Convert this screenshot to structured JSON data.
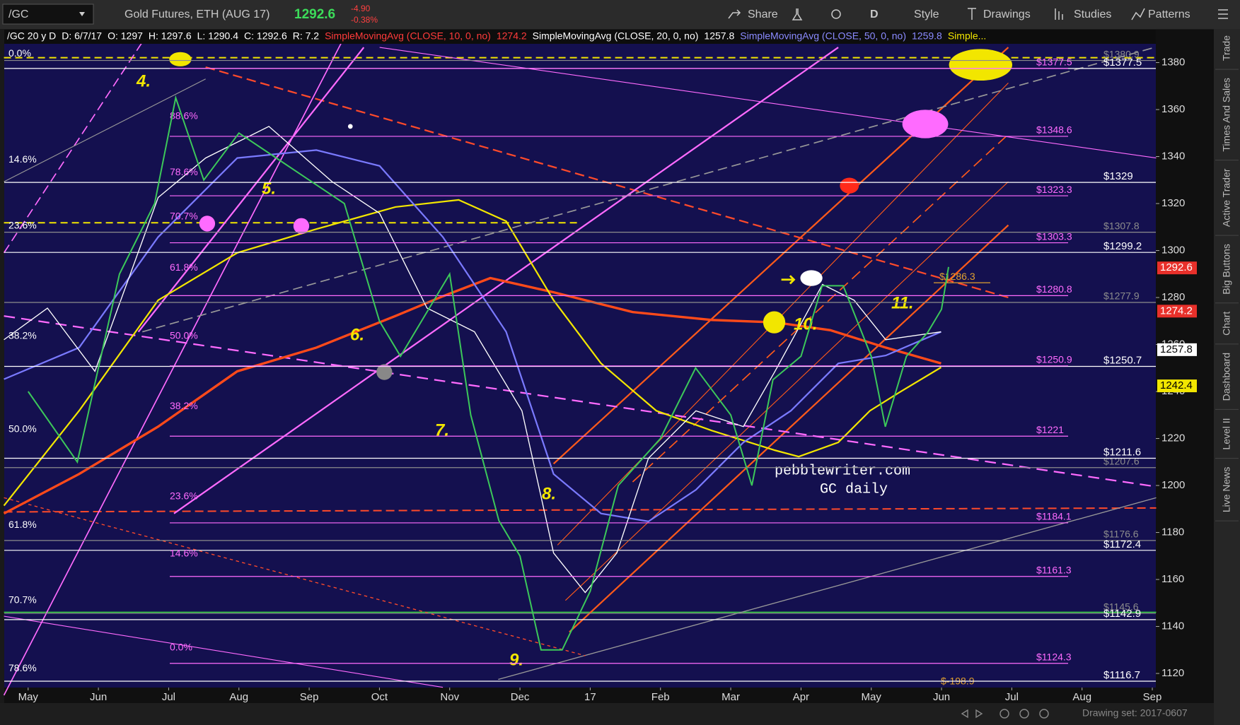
{
  "toolbar": {
    "symbol": "/GC",
    "description": "Gold Futures, ETH (AUG 17)",
    "last": "1292.6",
    "change": "-4.90",
    "change_pct": "-0.38%",
    "buttons": [
      "Share",
      "D",
      "Style",
      "Drawings",
      "Studies",
      "Patterns"
    ]
  },
  "header": {
    "items": [
      "/GC 20 y D",
      "D: 6/7/17",
      "O: 1297",
      "H: 1297.6",
      "L: 1290.4",
      "C: 1292.6",
      "R: 7.2"
    ],
    "studies": [
      {
        "name": "SimpleMovingAvg (CLOSE, 10, 0, no)",
        "value": "1274.2",
        "color": "#ff3b3b"
      },
      {
        "name": "SimpleMovingAvg (CLOSE, 20, 0, no)",
        "value": "1257.8",
        "color": "#ffffff"
      },
      {
        "name": "SimpleMovingAvg (CLOSE, 50, 0, no)",
        "value": "1259.8",
        "color": "#8a8aff"
      }
    ],
    "more": "Simple..."
  },
  "side_tabs": [
    "Trade",
    "Times And Sales",
    "Active Trader",
    "Big Buttons",
    "Chart",
    "Dashboard",
    "Level II",
    "Live News"
  ],
  "footer": {
    "drawing_set": "Drawing set: 2017-0607"
  },
  "chart_data": {
    "type": "line",
    "color": "#3cc85a",
    "x": [
      0,
      0.7,
      1.3,
      1.8,
      2.1,
      2.5,
      3.0,
      3.5,
      4.0,
      4.5,
      5.0,
      5.3,
      6.0,
      6.3,
      6.7,
      7.0,
      7.3,
      7.6,
      8.0,
      8.4,
      9.0,
      9.5,
      10.0,
      10.3,
      10.6,
      11.0,
      11.3,
      11.6,
      12.0,
      12.2,
      12.5,
      12.8,
      13.0,
      13.1
    ],
    "values": [
      1240,
      1210,
      1290,
      1320,
      1365,
      1330,
      1350,
      1340,
      1330,
      1320,
      1270,
      1255,
      1290,
      1230,
      1185,
      1170,
      1130,
      1130,
      1155,
      1200,
      1220,
      1250,
      1230,
      1200,
      1245,
      1255,
      1285,
      1285,
      1255,
      1225,
      1255,
      1265,
      1275,
      1293
    ],
    "xlim": [
      -0.34,
      16.05
    ],
    "xticks": [
      {
        "value": 0,
        "label": "May"
      },
      {
        "value": 1,
        "label": "Jun"
      },
      {
        "value": 2,
        "label": "Jul"
      },
      {
        "value": 3,
        "label": "Aug"
      },
      {
        "value": 4,
        "label": "Sep"
      },
      {
        "value": 5,
        "label": "Oct"
      },
      {
        "value": 6,
        "label": "Nov"
      },
      {
        "value": 7,
        "label": "Dec"
      },
      {
        "value": 8,
        "label": "17"
      },
      {
        "value": 9,
        "label": "Feb"
      },
      {
        "value": 10,
        "label": "Mar"
      },
      {
        "value": 11,
        "label": "Apr"
      },
      {
        "value": 12,
        "label": "May"
      },
      {
        "value": 13,
        "label": "Jun"
      },
      {
        "value": 14,
        "label": "Jul"
      },
      {
        "value": 15,
        "label": "Aug"
      },
      {
        "value": 16,
        "label": "Sep"
      }
    ],
    "ylim": [
      1114,
      1394
    ],
    "yticks": [
      1120,
      1140,
      1160,
      1180,
      1200,
      1220,
      1240,
      1260,
      1280,
      1300,
      1320,
      1340,
      1360,
      1380
    ],
    "price_tags": [
      {
        "label": "1292.6",
        "value": 1292.6,
        "color": "#e8302a"
      },
      {
        "label": "1274.2",
        "value": 1274.2,
        "color": "#e8302a"
      },
      {
        "label": "1257.8",
        "value": 1257.8,
        "color": "#ffffff"
      },
      {
        "label": "1242.4",
        "value": 1242.4,
        "color": "#f2e600"
      }
    ],
    "pink_levels": {
      "color": "#ff6bff",
      "items": [
        {
          "label": "$1377.5",
          "value": 1377.5
        },
        {
          "label": "$1348.6",
          "value": 1348.6
        },
        {
          "label": "$1323.3",
          "value": 1323.3
        },
        {
          "label": "$1303.3",
          "value": 1303.3
        },
        {
          "label": "$1280.8",
          "value": 1280.8
        },
        {
          "label": "$1250.9",
          "value": 1250.9
        },
        {
          "label": "$1221",
          "value": 1221
        },
        {
          "label": "$1184.1",
          "value": 1184.1
        },
        {
          "label": "$1161.3",
          "value": 1161.3
        },
        {
          "label": "$1124.3",
          "value": 1124.3
        }
      ]
    },
    "white_levels": {
      "color": "#ffffff",
      "items": [
        {
          "label": "$1377.5",
          "value": 1377.5
        },
        {
          "label": "$1329",
          "value": 1329
        },
        {
          "label": "$1299.2",
          "value": 1299.2
        },
        {
          "label": "$1250.7",
          "value": 1250.7
        },
        {
          "label": "$1211.6",
          "value": 1211.6
        },
        {
          "label": "$1172.4",
          "value": 1172.4
        },
        {
          "label": "$1142.9",
          "value": 1142.9
        },
        {
          "label": "$1116.7",
          "value": 1116.7
        }
      ]
    },
    "grey_levels": {
      "color": "#8c8c8c",
      "items": [
        {
          "label": "$1380.9",
          "value": 1380.9
        },
        {
          "label": "$1307.8",
          "value": 1307.8
        },
        {
          "label": "$1277.9",
          "value": 1277.9
        },
        {
          "label": "$1207.6",
          "value": 1207.6
        },
        {
          "label": "$1176.6",
          "value": 1176.6
        },
        {
          "label": "$1145.6",
          "value": 1145.6
        }
      ]
    },
    "orange_levels": {
      "color": "#e0a030",
      "items": [
        {
          "label": "$1286.3",
          "value": 1286.3
        }
      ]
    },
    "left_fibs": {
      "color": "#ffffff",
      "items": [
        {
          "label": "0.0%",
          "value": 1381.3
        },
        {
          "label": "14.6%",
          "value": 1336.2
        },
        {
          "label": "23.6%",
          "value": 1308
        },
        {
          "label": "38.2%",
          "value": 1261.1
        },
        {
          "label": "50.0%",
          "value": 1221.4
        },
        {
          "label": "61.8%",
          "value": 1180.7
        },
        {
          "label": "70.7%",
          "value": 1148.7
        },
        {
          "label": "78.6%",
          "value": 1119.7
        }
      ]
    },
    "mid_fibs": {
      "color": "#ff6bff",
      "items": [
        {
          "label": "88.6%",
          "value": 1354.7
        },
        {
          "label": "78.6%",
          "value": 1330.8
        },
        {
          "label": "70.7%",
          "value": 1312
        },
        {
          "label": "61.8%",
          "value": 1290.1
        },
        {
          "label": "50.0%",
          "value": 1261.1
        },
        {
          "label": "38.2%",
          "value": 1231.2
        },
        {
          "label": "23.6%",
          "value": 1192.8
        },
        {
          "label": "14.6%",
          "value": 1168.5
        },
        {
          "label": "0.0%",
          "value": 1128.5
        }
      ]
    },
    "waves": [
      "4.",
      "5.",
      "6.",
      "7.",
      "8.",
      "9.",
      "10.",
      "11."
    ],
    "watermark": [
      "pebblewriter.com",
      "GC daily"
    ],
    "bottom_note": "$-198.9"
  }
}
